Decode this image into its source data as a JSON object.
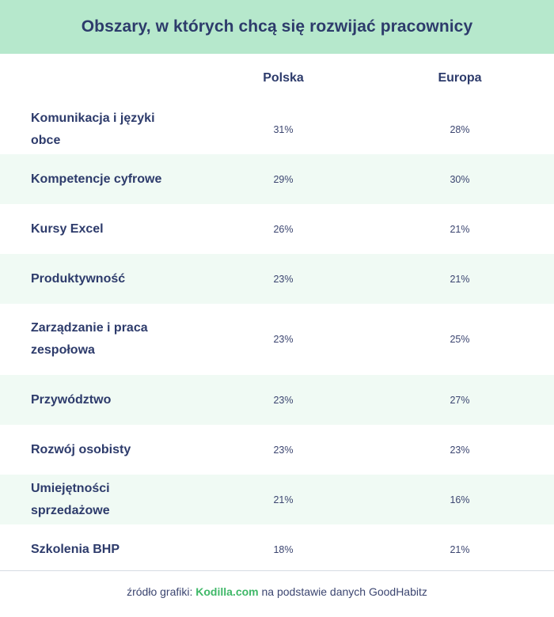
{
  "chart_data": {
    "type": "table",
    "title": "Obszary, w których chcą się rozwijać pracownicy",
    "columns": [
      "Polska",
      "Europa"
    ],
    "rows": [
      {
        "label": "Komunikacja i języki obce",
        "polska": "31%",
        "europa": "28%"
      },
      {
        "label": "Kompetencje cyfrowe",
        "polska": "29%",
        "europa": "30%"
      },
      {
        "label": "Kursy Excel",
        "polska": "26%",
        "europa": "21%"
      },
      {
        "label": "Produktywność",
        "polska": "23%",
        "europa": "21%"
      },
      {
        "label": "Zarządzanie i praca zespołowa",
        "polska": "23%",
        "europa": "25%"
      },
      {
        "label": "Przywództwo",
        "polska": "23%",
        "europa": "27%"
      },
      {
        "label": "Rozwój osobisty",
        "polska": "23%",
        "europa": "23%"
      },
      {
        "label": "Umiejętności sprzedażowe",
        "polska": "21%",
        "europa": "16%"
      },
      {
        "label": "Szkolenia BHP",
        "polska": "18%",
        "europa": "21%"
      }
    ]
  },
  "footer": {
    "prefix": "źródło grafiki: ",
    "brand": "Kodilla.com",
    "suffix": " na podstawie danych GoodHabitz"
  },
  "colors": {
    "header_bg": "#b6e8cc",
    "row_shade": "#f0faf4",
    "text": "#2d3b6b",
    "brand": "#3fb868"
  }
}
